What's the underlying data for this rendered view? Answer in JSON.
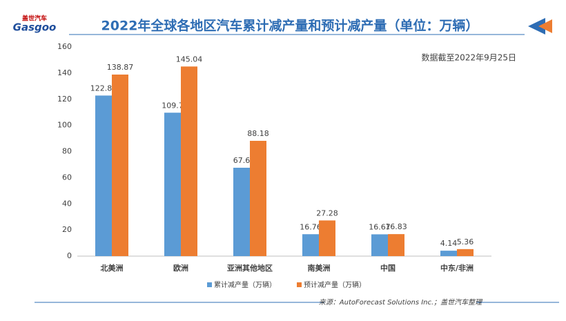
{
  "logo": {
    "brand": "Gasgoo",
    "cn": "盖世汽车"
  },
  "chart_data": {
    "type": "bar",
    "title": "2022年全球各地区汽车累计减产量和预计减产量（单位：万辆）",
    "note": "数据截至2022年9月25日",
    "source": "来源：AutoForecast Solutions Inc.；盖世汽车整理",
    "categories": [
      "北美洲",
      "欧洲",
      "亚洲其他地区",
      "南美洲",
      "中国",
      "中东/非洲"
    ],
    "series": [
      {
        "name": "累计减产量（万辆）",
        "color": "#5b9bd5",
        "values": [
          122.82,
          109.7,
          67.6,
          16.76,
          16.67,
          4.14
        ]
      },
      {
        "name": "预计减产量（万辆）",
        "color": "#ed7d31",
        "values": [
          138.87,
          145.04,
          88.18,
          27.28,
          16.83,
          5.36
        ]
      }
    ],
    "ylim": [
      0,
      160
    ],
    "yticks": [
      0,
      20,
      40,
      60,
      80,
      100,
      120,
      140,
      160
    ],
    "grid": false
  }
}
